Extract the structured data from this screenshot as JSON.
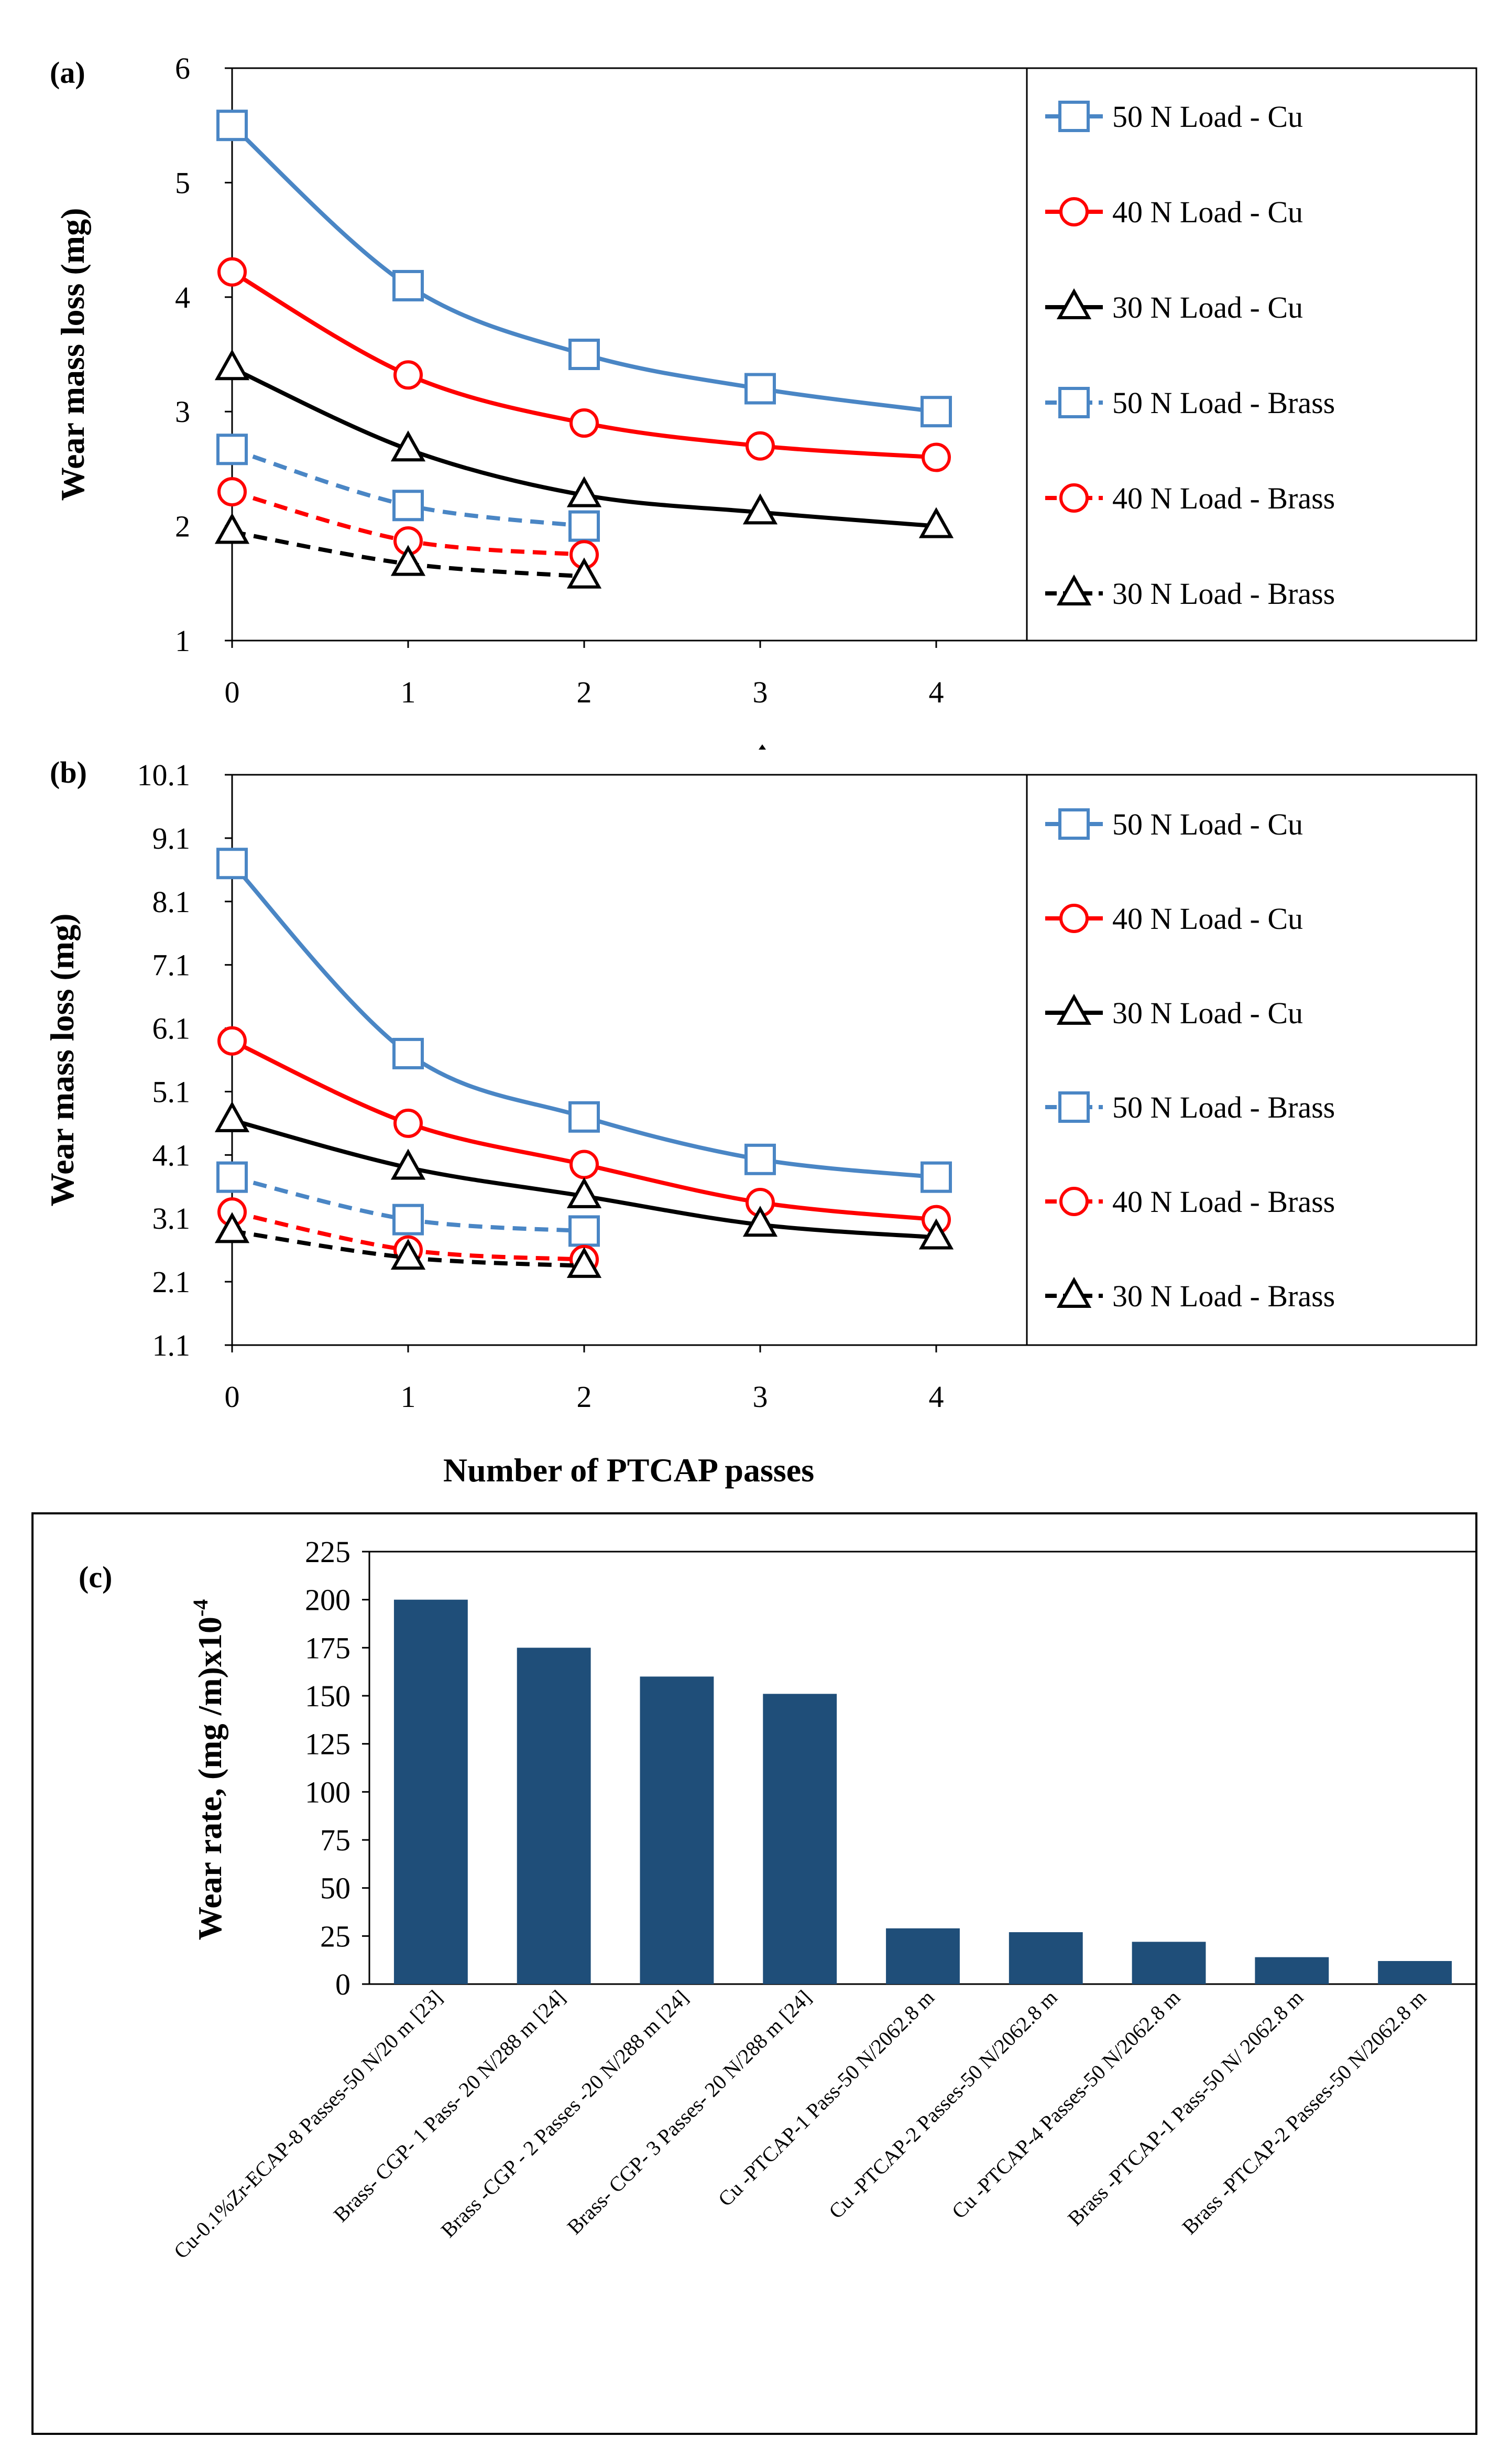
{
  "chart_data": [
    {
      "panel": "(a)",
      "type": "line",
      "title": "",
      "xlabel": "",
      "ylabel": "Wear mass loss (mg)",
      "x_ticks": [
        "0",
        "1",
        "2",
        "3",
        "4"
      ],
      "y_ticks": [
        "1",
        "2",
        "3",
        "4",
        "5",
        "6"
      ],
      "xlim": [
        0,
        4
      ],
      "ylim": [
        1,
        6
      ],
      "grid": false,
      "legend_position": "right",
      "series": [
        {
          "name": "50 N Load - Cu",
          "x": [
            0,
            1,
            2,
            3,
            4
          ],
          "y": [
            5.5,
            4.1,
            3.5,
            3.2,
            3.0
          ],
          "color": "#4a86c5",
          "dash": false,
          "marker": "square"
        },
        {
          "name": "40 N Load - Cu",
          "x": [
            0,
            1,
            2,
            3,
            4
          ],
          "y": [
            4.22,
            3.32,
            2.9,
            2.7,
            2.6
          ],
          "color": "#ff0000",
          "dash": false,
          "marker": "circle"
        },
        {
          "name": "30 N Load - Cu",
          "x": [
            0,
            1,
            2,
            3,
            4
          ],
          "y": [
            3.38,
            2.67,
            2.27,
            2.12,
            2.0
          ],
          "color": "#000000",
          "dash": false,
          "marker": "triangle"
        },
        {
          "name": "50 N Load - Brass",
          "x": [
            0,
            1,
            2
          ],
          "y": [
            2.67,
            2.18,
            2.0
          ],
          "color": "#4a86c5",
          "dash": true,
          "marker": "square"
        },
        {
          "name": "40 N Load - Brass",
          "x": [
            0,
            1,
            2
          ],
          "y": [
            2.3,
            1.87,
            1.75
          ],
          "color": "#ff0000",
          "dash": true,
          "marker": "circle"
        },
        {
          "name": "30 N Load - Brass",
          "x": [
            0,
            1,
            2
          ],
          "y": [
            1.95,
            1.67,
            1.56
          ],
          "color": "#000000",
          "dash": true,
          "marker": "triangle"
        }
      ]
    },
    {
      "panel": "(b)",
      "type": "line",
      "title": "",
      "xlabel": "Number of PTCAP passes",
      "ylabel": "Wear mass loss (mg)",
      "x_ticks": [
        "0",
        "1",
        "2",
        "3",
        "4"
      ],
      "y_ticks": [
        "1.1",
        "2.1",
        "3.1",
        "4.1",
        "5.1",
        "6.1",
        "7.1",
        "8.1",
        "9.1",
        "10.1"
      ],
      "xlim": [
        0,
        4
      ],
      "ylim": [
        1.1,
        10.1
      ],
      "grid": false,
      "legend_position": "right",
      "series": [
        {
          "name": "50 N Load - Cu",
          "x": [
            0,
            1,
            2,
            3,
            4
          ],
          "y": [
            8.7,
            5.7,
            4.7,
            4.03,
            3.75
          ],
          "color": "#4a86c5",
          "dash": false,
          "marker": "square"
        },
        {
          "name": "40 N Load - Cu",
          "x": [
            0,
            1,
            2,
            3,
            4
          ],
          "y": [
            5.9,
            4.6,
            3.95,
            3.35,
            3.08
          ],
          "color": "#ff0000",
          "dash": false,
          "marker": "circle"
        },
        {
          "name": "30 N Load - Cu",
          "x": [
            0,
            1,
            2,
            3,
            4
          ],
          "y": [
            4.65,
            3.9,
            3.45,
            3.0,
            2.8
          ],
          "color": "#000000",
          "dash": false,
          "marker": "triangle"
        },
        {
          "name": "50 N Load - Brass",
          "x": [
            0,
            1,
            2
          ],
          "y": [
            3.75,
            3.08,
            2.9
          ],
          "color": "#4a86c5",
          "dash": true,
          "marker": "square"
        },
        {
          "name": "40 N Load - Brass",
          "x": [
            0,
            1,
            2
          ],
          "y": [
            3.2,
            2.6,
            2.45
          ],
          "color": "#ff0000",
          "dash": true,
          "marker": "circle"
        },
        {
          "name": "30 N Load - Brass",
          "x": [
            0,
            1,
            2
          ],
          "y": [
            2.9,
            2.48,
            2.35
          ],
          "color": "#000000",
          "dash": true,
          "marker": "triangle"
        }
      ]
    },
    {
      "panel": "(c)",
      "type": "bar",
      "title": "",
      "xlabel": "",
      "ylabel": "Wear rate, (mg /m)x10",
      "ylabel_superscript": "-4",
      "ylim": [
        0,
        225
      ],
      "y_ticks": [
        "0",
        "25",
        "50",
        "75",
        "100",
        "125",
        "150",
        "175",
        "200",
        "225"
      ],
      "grid": false,
      "bar_color": "#1f4e79",
      "categories": [
        "Cu-0.1%Zr-ECAP-8 Passes-50 N/20 m [23]",
        "Brass- CGP- 1 Pass- 20 N/288 m [24]",
        "Brass -CGP - 2 Passes -20 N/288 m [24]",
        "Brass- CGP- 3 Passes- 20 N/288 m [24]",
        "Cu -PTCAP-1 Pass-50 N/2062.8 m",
        "Cu -PTCAP-2 Passes-50 N/2062.8 m",
        "Cu -PTCAP-4 Passes-50 N/2062.8 m",
        "Brass -PTCAP-1 Pass-50 N/ 2062.8 m",
        "Brass -PTCAP-2 Passes-50 N/2062.8 m"
      ],
      "values": [
        200,
        175,
        160,
        151,
        29,
        27,
        22,
        14,
        12
      ]
    }
  ]
}
